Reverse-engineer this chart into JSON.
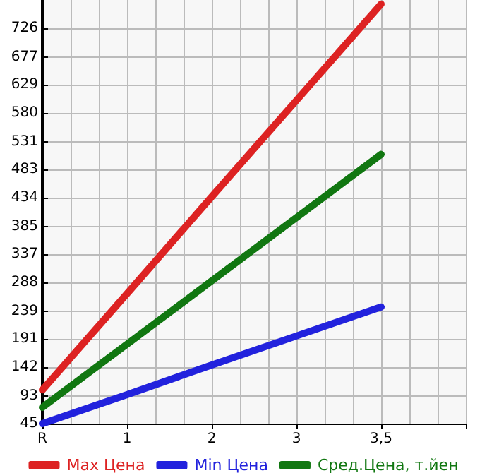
{
  "chart_data": {
    "type": "line",
    "categories": [
      "R",
      "1",
      "2",
      "3",
      "3,5",
      null
    ],
    "series": [
      {
        "name": "Max Цена",
        "color": "#dd2222",
        "values": [
          103,
          269,
          436,
          602,
          768,
          null
        ]
      },
      {
        "name": "Min Цена",
        "color": "#2222dd",
        "values": [
          45,
          95,
          146,
          196,
          246,
          null
        ]
      },
      {
        "name": "Сред.Цена, т.йен",
        "color": "#117711",
        "values": [
          73,
          182,
          291,
          400,
          509,
          null
        ]
      }
    ],
    "ylim": [
      45,
      775
    ],
    "yticks": [
      45,
      93,
      142,
      191,
      239,
      288,
      337,
      385,
      434,
      483,
      531,
      580,
      629,
      677,
      726
    ],
    "grid": true,
    "legend": "bottom",
    "marker": "none",
    "line_style": "solid"
  }
}
